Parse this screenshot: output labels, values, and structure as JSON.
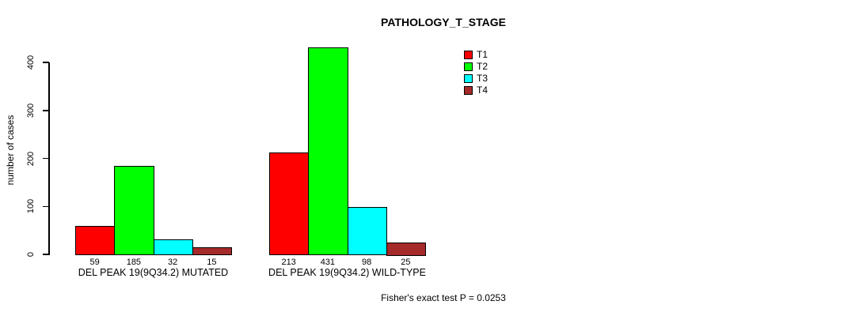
{
  "title": "PATHOLOGY_T_STAGE",
  "chart_data": {
    "type": "bar",
    "title": "PATHOLOGY_T_STAGE",
    "xlabel": "",
    "ylabel": "number of cases",
    "ylim": [
      0,
      440
    ],
    "yticks": [
      0,
      100,
      200,
      300,
      400
    ],
    "grid": false,
    "legend_position": "top-right",
    "categories": [
      "DEL PEAK 19(9Q34.2) MUTATED",
      "DEL PEAK 19(9Q34.2) WILD-TYPE"
    ],
    "series": [
      {
        "name": "T1",
        "color": "#ff0000",
        "values": [
          59,
          213
        ]
      },
      {
        "name": "T2",
        "color": "#00ff00",
        "values": [
          185,
          431
        ]
      },
      {
        "name": "T3",
        "color": "#00ffff",
        "values": [
          32,
          98
        ]
      },
      {
        "name": "T4",
        "color": "#a52a2a",
        "values": [
          15,
          25
        ]
      }
    ],
    "bar_value_labels": [
      [
        "59",
        "185",
        "32",
        "15"
      ],
      [
        "213",
        "431",
        "98",
        "25"
      ]
    ],
    "annotation": "Fisher's exact test P = 0.0253"
  },
  "colors": {
    "axis": "#000000",
    "text": "#000000",
    "background": "#ffffff"
  }
}
